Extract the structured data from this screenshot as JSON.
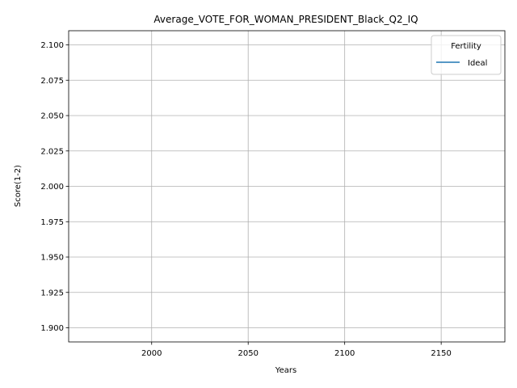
{
  "chart_data": {
    "type": "line",
    "title": "Average_VOTE_FOR_WOMAN_PRESIDENT_Black_Q2_IQ",
    "xlabel": "Years",
    "ylabel": "Score(1-2)",
    "xlim": [
      1957,
      2183
    ],
    "ylim": [
      1.89,
      2.11
    ],
    "xticks": [
      2000,
      2050,
      2100,
      2150
    ],
    "xtick_labels": [
      "2000",
      "2050",
      "2100",
      "2150"
    ],
    "yticks": [
      1.9,
      1.925,
      1.95,
      1.975,
      2.0,
      2.025,
      2.05,
      2.075,
      2.1
    ],
    "ytick_labels": [
      "1.900",
      "1.925",
      "1.950",
      "1.975",
      "2.000",
      "2.025",
      "2.050",
      "2.075",
      "2.100"
    ],
    "grid": true,
    "legend": {
      "title": "Fertility",
      "placement": "top-right",
      "entries": [
        {
          "label": "Ideal",
          "color": "#1f77b4"
        }
      ]
    },
    "series": [
      {
        "name": "Ideal",
        "color": "#1f77b4",
        "x": [],
        "y": []
      }
    ]
  }
}
